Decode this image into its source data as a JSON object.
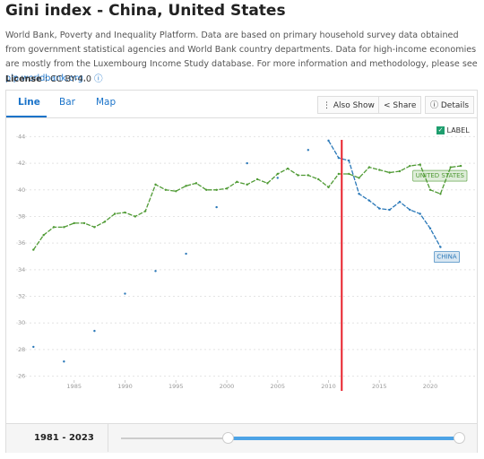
{
  "header": {
    "title": "Gini index - China, United States",
    "description": "World Bank, Poverty and Inequality Platform. Data are based on primary household survey data obtained from government statistical agencies and World Bank country departments. Data for high-income economies are mostly from the Luxembourg Income Study database. For more information and methodology, please see ",
    "link": "pip.worldbank.org",
    "description_end": ".",
    "license_label": "License",
    "license_value": ": CC BY-4.0"
  },
  "tabs": [
    "Line",
    "Bar",
    "Map"
  ],
  "buttons": [
    "Also Show",
    "Share",
    "Details"
  ],
  "label_toggle": "LABEL",
  "range": "1981 - 2023",
  "chart_data": {
    "type": "line",
    "grid": true,
    "x": [
      1981,
      1982,
      1983,
      1984,
      1985,
      1986,
      1987,
      1988,
      1989,
      1990,
      1991,
      1992,
      1993,
      1994,
      1995,
      1996,
      1997,
      1998,
      1999,
      2000,
      2001,
      2002,
      2003,
      2004,
      2005,
      2006,
      2007,
      2008,
      2009,
      2010,
      2011,
      2012,
      2013,
      2014,
      2015,
      2016,
      2017,
      2018,
      2019,
      2020,
      2021,
      2022,
      2023
    ],
    "xlim": [
      1979.3,
      2024.4
    ],
    "xticks": [
      1985,
      1990,
      1995,
      2000,
      2005,
      2010,
      2015,
      2020
    ],
    "ylim": [
      25.5,
      44.5
    ],
    "yticks": [
      26,
      28,
      30,
      32,
      34,
      36,
      38,
      40,
      42,
      44
    ],
    "highlight_x": 2011.3,
    "series": [
      {
        "name": "UNITED STATES",
        "color": "#4f9a34",
        "values": [
          35.5,
          36.6,
          37.2,
          37.2,
          37.5,
          37.5,
          37.2,
          37.6,
          38.2,
          38.3,
          38.0,
          38.4,
          40.4,
          40.0,
          39.9,
          40.3,
          40.5,
          40.0,
          40.0,
          40.1,
          40.6,
          40.4,
          40.8,
          40.5,
          41.2,
          41.6,
          41.1,
          41.1,
          40.8,
          40.2,
          41.2,
          41.2,
          40.9,
          41.7,
          41.5,
          41.3,
          41.4,
          41.8,
          41.9,
          40.0,
          39.7,
          41.7,
          41.8
        ]
      },
      {
        "name": "CHINA",
        "color": "#2a78b8",
        "values": [
          28.2,
          null,
          null,
          27.1,
          null,
          null,
          29.4,
          null,
          null,
          32.2,
          null,
          null,
          33.9,
          null,
          null,
          35.2,
          null,
          null,
          38.7,
          null,
          null,
          42.0,
          null,
          null,
          40.9,
          null,
          null,
          43.0,
          null,
          43.7,
          42.4,
          42.2,
          39.7,
          39.2,
          38.6,
          38.5,
          39.1,
          38.5,
          38.2,
          37.1,
          35.7,
          null,
          null
        ]
      }
    ]
  }
}
